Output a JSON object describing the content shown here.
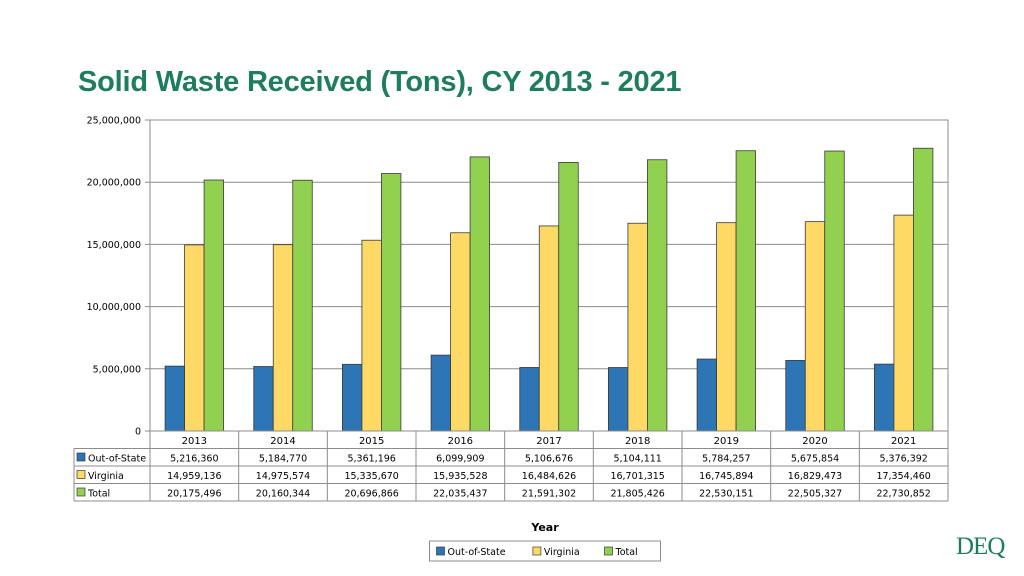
{
  "page": {
    "title": "Solid Waste Received (Tons), CY 2013 - 2021",
    "logo_text": "DEQ"
  },
  "chart_data": {
    "type": "bar",
    "title": "Solid Waste Received (Tons), CY 2013 - 2021",
    "xlabel": "Year",
    "ylabel": "",
    "ylim": [
      0,
      25000000
    ],
    "yticks": [
      0,
      5000000,
      10000000,
      15000000,
      20000000,
      25000000
    ],
    "ytick_labels": [
      "0",
      "5,000,000",
      "10,000,000",
      "15,000,000",
      "20,000,000",
      "25,000,000"
    ],
    "grid": true,
    "legend_position": "bottom",
    "categories": [
      "2013",
      "2014",
      "2015",
      "2016",
      "2017",
      "2018",
      "2019",
      "2020",
      "2021"
    ],
    "series": [
      {
        "name": "Out-of-State",
        "color": "#2e75b6",
        "values": [
          5216360,
          5184770,
          5361196,
          6099909,
          5106676,
          5104111,
          5784257,
          5675854,
          5376392
        ],
        "labels": [
          "5,216,360",
          "5,184,770",
          "5,361,196",
          "6,099,909",
          "5,106,676",
          "5,104,111",
          "5,784,257",
          "5,675,854",
          "5,376,392"
        ]
      },
      {
        "name": "Virginia",
        "color": "#ffd966",
        "values": [
          14959136,
          14975574,
          15335670,
          15935528,
          16484626,
          16701315,
          16745894,
          16829473,
          17354460
        ],
        "labels": [
          "14,959,136",
          "14,975,574",
          "15,335,670",
          "15,935,528",
          "16,484,626",
          "16,701,315",
          "16,745,894",
          "16,829,473",
          "17,354,460"
        ]
      },
      {
        "name": "Total",
        "color": "#92d050",
        "values": [
          20175496,
          20160344,
          20696866,
          22035437,
          21591302,
          21805426,
          22530151,
          22505327,
          22730852
        ],
        "labels": [
          "20,175,496",
          "20,160,344",
          "20,696,866",
          "22,035,437",
          "21,591,302",
          "21,805,426",
          "22,530,151",
          "22,505,327",
          "22,730,852"
        ]
      }
    ]
  }
}
